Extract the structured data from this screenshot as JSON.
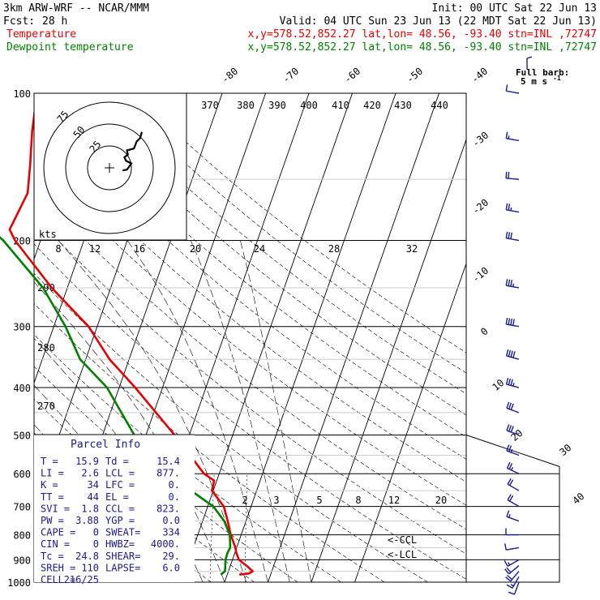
{
  "header": {
    "model": "3km ARW-WRF -- NCAR/MMM",
    "init": "Init: 00 UTC Sat 22 Jun 13",
    "fcst_label": "Fcst:",
    "fcst_value": "28 h",
    "valid": "Valid: 04 UTC Sun 23 Jun 13 (22 MDT Sat 22 Jun 13)",
    "temp_label": "Temperature",
    "dew_label": "Dewpoint temperature",
    "location": "x,y=578.52,852.27   lat,lon= 48.56, -93.40   stn=INL ,72747",
    "full_barb_1": "Full barb:",
    "full_barb_2": "5 m s",
    "full_barb_exp": "-1"
  },
  "colors": {
    "temperature": "#e60000",
    "dewpoint": "#008000",
    "parcel_text": "#1a1a8c",
    "grid": "#000000",
    "light_grid": "#cccccc"
  },
  "chart_data": {
    "type": "line",
    "title": "",
    "y_scale": "log-pressure",
    "ylim": [
      1000,
      100
    ],
    "xlim_surface": [
      -40,
      40
    ],
    "pressure_levels": [
      100,
      200,
      300,
      400,
      500,
      600,
      700,
      800,
      900,
      1000
    ],
    "isotherm_labels": [
      "-80",
      "-70",
      "-60",
      "-50",
      "-40",
      "-30",
      "-20",
      "-10",
      "0",
      "10",
      "20",
      "30",
      "40"
    ],
    "dry_adiabat_labels": [
      "370",
      "380",
      "390",
      "400",
      "410",
      "420",
      "430",
      "440",
      "290",
      "280",
      "270"
    ],
    "mixing_ratio_labels": [
      "2",
      "3",
      "5",
      "8",
      "12",
      "20"
    ],
    "series": [
      {
        "name": "Temperature",
        "color": "#e60000",
        "points": [
          [
            965,
            22.8
          ],
          [
            960,
            24.9
          ],
          [
            950,
            25.6
          ],
          [
            930,
            24.1
          ],
          [
            900,
            21.5
          ],
          [
            870,
            20.3
          ],
          [
            850,
            19.7
          ],
          [
            800,
            17.6
          ],
          [
            750,
            15.8
          ],
          [
            700,
            13.7
          ],
          [
            650,
            9.7
          ],
          [
            620,
            9.4
          ],
          [
            600,
            6.5
          ],
          [
            500,
            -3.4
          ],
          [
            400,
            -16.3
          ],
          [
            350,
            -24.5
          ],
          [
            300,
            -32.0
          ],
          [
            250,
            -43.6
          ],
          [
            200,
            -55.9
          ],
          [
            190,
            -58.0
          ],
          [
            160,
            -56.8
          ],
          [
            140,
            -58.5
          ],
          [
            120,
            -60.7
          ],
          [
            100,
            -62.7
          ]
        ]
      },
      {
        "name": "Dewpoint temperature",
        "color": "#008000",
        "points": [
          [
            965,
            18.5
          ],
          [
            950,
            19.2
          ],
          [
            930,
            18.9
          ],
          [
            900,
            18.4
          ],
          [
            870,
            18.3
          ],
          [
            850,
            18.5
          ],
          [
            800,
            17.4
          ],
          [
            750,
            15.0
          ],
          [
            700,
            11.3
          ],
          [
            650,
            4.9
          ],
          [
            620,
            2.6
          ],
          [
            600,
            1.0
          ],
          [
            500,
            -12.7
          ],
          [
            400,
            -22.8
          ],
          [
            350,
            -31.3
          ],
          [
            300,
            -37.3
          ],
          [
            250,
            -45.6
          ],
          [
            200,
            -58.6
          ],
          [
            180,
            -66.1
          ],
          [
            150,
            -71.4
          ],
          [
            130,
            -72.8
          ],
          [
            110,
            -77.6
          ],
          [
            100,
            -80.5
          ]
        ]
      }
    ],
    "annotations": [
      "<-CCL",
      "<-LCL"
    ],
    "hodograph": {
      "units": "kts",
      "ring_labels": [
        "25",
        "50",
        "75"
      ],
      "speed_labels": [
        "8",
        "12",
        "16",
        "20",
        "24",
        "28",
        "32"
      ],
      "trace_uv": [
        [
          15,
          -3
        ],
        [
          20,
          -2
        ],
        [
          25,
          5
        ],
        [
          19,
          8
        ],
        [
          17,
          12
        ],
        [
          21,
          15
        ],
        [
          20,
          20
        ],
        [
          28,
          22
        ],
        [
          31,
          30
        ],
        [
          35,
          34
        ],
        [
          37,
          41
        ]
      ]
    },
    "wind_barbs": [
      {
        "p": 1000,
        "speed": 10,
        "dir": 200
      },
      {
        "p": 975,
        "speed": 15,
        "dir": 210
      },
      {
        "p": 950,
        "speed": 20,
        "dir": 220
      },
      {
        "p": 925,
        "speed": 20,
        "dir": 230
      },
      {
        "p": 900,
        "speed": 15,
        "dir": 240
      },
      {
        "p": 850,
        "speed": 10,
        "dir": 260
      },
      {
        "p": 800,
        "speed": 10,
        "dir": 270
      },
      {
        "p": 750,
        "speed": 15,
        "dir": 290
      },
      {
        "p": 700,
        "speed": 20,
        "dir": 300
      },
      {
        "p": 650,
        "speed": 20,
        "dir": 300
      },
      {
        "p": 600,
        "speed": 25,
        "dir": 295
      },
      {
        "p": 550,
        "speed": 25,
        "dir": 290
      },
      {
        "p": 500,
        "speed": 30,
        "dir": 290
      },
      {
        "p": 450,
        "speed": 30,
        "dir": 290
      },
      {
        "p": 400,
        "speed": 35,
        "dir": 285
      },
      {
        "p": 350,
        "speed": 40,
        "dir": 285
      },
      {
        "p": 300,
        "speed": 40,
        "dir": 280
      },
      {
        "p": 250,
        "speed": 35,
        "dir": 280
      },
      {
        "p": 200,
        "speed": 30,
        "dir": 280
      },
      {
        "p": 175,
        "speed": 25,
        "dir": 280
      },
      {
        "p": 150,
        "speed": 20,
        "dir": 275
      },
      {
        "p": 125,
        "speed": 15,
        "dir": 280
      },
      {
        "p": 100,
        "speed": 10,
        "dir": 280
      }
    ]
  },
  "parcel_info": {
    "title": "Parcel Info",
    "rows": [
      [
        "T  =",
        "15.9",
        "Td  =",
        "15.4"
      ],
      [
        "LI =",
        "2.6",
        "LCL =",
        "877."
      ],
      [
        "K  =",
        "34",
        "LFC =",
        "0."
      ],
      [
        "TT =",
        "44",
        "EL  =",
        "0."
      ],
      [
        "SVI =",
        "1.8",
        "CCL =",
        "823."
      ],
      [
        "PW =",
        "3.88",
        "YGP =",
        "0.0"
      ],
      [
        "CAPE =",
        "0",
        "SWEAT=",
        "334"
      ],
      [
        "CIN =",
        "0",
        "HWBZ=",
        "4000."
      ],
      [
        "Tc =",
        "24.8",
        "SHEAR=",
        "29."
      ],
      [
        "SREH =",
        "110",
        "LAPSE=",
        "6.0"
      ],
      [
        "CELL =",
        "216/25",
        "",
        ""
      ]
    ]
  }
}
